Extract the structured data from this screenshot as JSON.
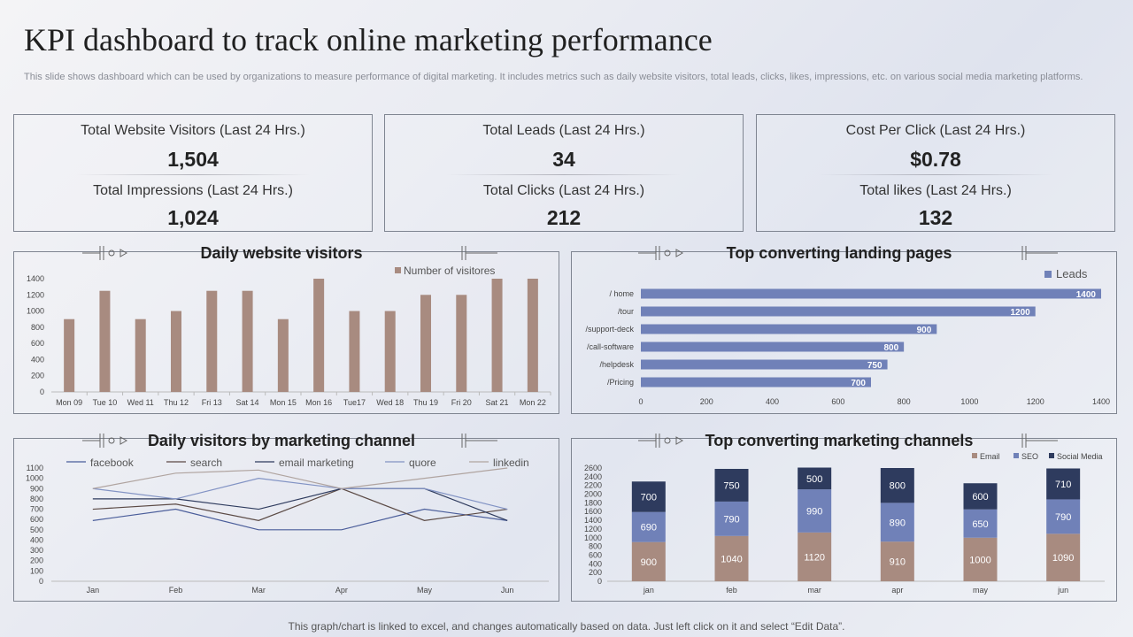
{
  "header": {
    "title": "KPI dashboard to track online marketing performance",
    "subtitle": "This slide shows dashboard which can be used by organizations to measure performance of digital marketing. It includes metrics such as daily website visitors, total leads, clicks, likes, impressions, etc. on various social media marketing platforms."
  },
  "kpis": [
    {
      "top_label": "Total Website Visitors (Last 24 Hrs.)",
      "top_value": "1,504",
      "bottom_label": "Total Impressions  (Last 24 Hrs.)",
      "bottom_value": "1,024"
    },
    {
      "top_label": "Total Leads (Last 24 Hrs.)",
      "top_value": "34",
      "bottom_label": "Total Clicks (Last 24 Hrs.)",
      "bottom_value": "212"
    },
    {
      "top_label": "Cost Per Click  (Last 24 Hrs.)",
      "top_value": "$0.78",
      "bottom_label": "Total likes  (Last 24 Hrs.)",
      "bottom_value": "132"
    }
  ],
  "footer": "This graph/chart is linked to excel,  and changes automatically based on data. Just left click on it and select “Edit Data”.",
  "colors": {
    "bar_brown": "#a88b80",
    "bar_blue": "#7081b8",
    "navy": "#2e3b5e",
    "grid": "#d6d8de"
  },
  "chart_data": [
    {
      "type": "bar",
      "title": "Daily website visitors",
      "categories": [
        "Mon 09",
        "Tue 10",
        "Wed 11",
        "Thu 12",
        "Fri 13",
        "Sat 14",
        "Mon 15",
        "Mon 16",
        "Tue17",
        "Wed 18",
        "Thu 19",
        "Fri 20",
        "Sat 21",
        "Mon 22"
      ],
      "series": [
        {
          "name": "Number of visitores",
          "values": [
            900,
            1250,
            900,
            1000,
            1250,
            1250,
            900,
            1400,
            1000,
            1000,
            1200,
            1200,
            1400,
            1400
          ]
        }
      ],
      "ylim": [
        0,
        1400
      ],
      "yticks": [
        0,
        200,
        400,
        600,
        800,
        1000,
        1200,
        1400
      ],
      "legend": "top-right"
    },
    {
      "type": "bar",
      "orientation": "horizontal",
      "title": "Top converting landing pages",
      "categories": [
        "/ home",
        "/tour",
        "/support-deck",
        "/call-software",
        "/helpdesk",
        "/Pricing"
      ],
      "series": [
        {
          "name": "Leads",
          "values": [
            1400,
            1200,
            900,
            800,
            750,
            700
          ]
        }
      ],
      "xlim": [
        0,
        1400
      ],
      "xticks": [
        0,
        200,
        400,
        600,
        800,
        1000,
        1200,
        1400
      ],
      "legend": "top-right"
    },
    {
      "type": "line",
      "title": "Daily visitors by marketing channel",
      "categories": [
        "Jan",
        "Feb",
        "Mar",
        "Apr",
        "May",
        "Jun"
      ],
      "series": [
        {
          "name": "facebook",
          "values": [
            590,
            700,
            500,
            500,
            700,
            590
          ]
        },
        {
          "name": "search",
          "values": [
            700,
            750,
            590,
            900,
            590,
            700
          ]
        },
        {
          "name": "email marketing",
          "values": [
            800,
            800,
            700,
            900,
            900,
            590
          ]
        },
        {
          "name": "quore",
          "values": [
            900,
            800,
            1000,
            900,
            900,
            700
          ]
        },
        {
          "name": "linkedin",
          "values": [
            900,
            1050,
            1080,
            900,
            1000,
            1100
          ]
        }
      ],
      "ylim": [
        0,
        1100
      ],
      "yticks": [
        0,
        100,
        200,
        300,
        400,
        500,
        600,
        700,
        800,
        900,
        1000,
        1100
      ],
      "legend": "top"
    },
    {
      "type": "bar",
      "stacked": true,
      "title": "Top converting marketing channels",
      "categories": [
        "jan",
        "feb",
        "mar",
        "apr",
        "may",
        "jun"
      ],
      "series": [
        {
          "name": "Email",
          "values": [
            900,
            1040,
            1120,
            910,
            1000,
            1090
          ]
        },
        {
          "name": "SEO",
          "values": [
            690,
            790,
            990,
            890,
            650,
            790
          ]
        },
        {
          "name": "Social Media",
          "values": [
            700,
            750,
            500,
            800,
            600,
            710
          ]
        }
      ],
      "ylim": [
        0,
        2600
      ],
      "yticks": [
        0,
        200,
        400,
        600,
        800,
        1000,
        1200,
        1400,
        1600,
        1800,
        2000,
        2200,
        2400,
        2600
      ],
      "legend": "top-right"
    }
  ]
}
